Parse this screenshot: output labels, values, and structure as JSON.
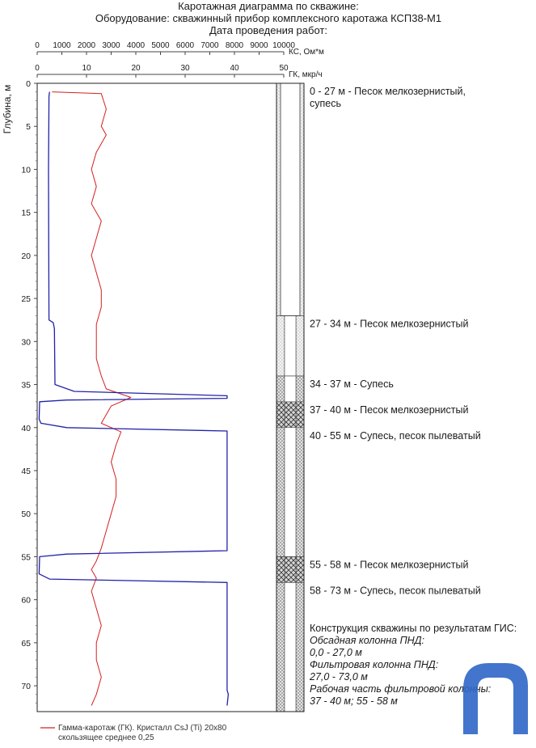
{
  "title_lines": [
    "Каротажная диаграмма по скважине:",
    "Оборудование: скважинный прибор комплексного каротажа КСП38-М1",
    "Дата проведения работ:"
  ],
  "chart_data": {
    "type": "line",
    "ylabel": "Глубина, м",
    "ylim": [
      0,
      73
    ],
    "y_ticks": [
      0,
      5,
      10,
      15,
      20,
      25,
      30,
      35,
      40,
      45,
      50,
      55,
      60,
      65,
      70
    ],
    "axes": {
      "ks": {
        "label": "КС, Ом*м",
        "range": [
          0,
          10000
        ],
        "ticks": [
          0,
          1000,
          2000,
          3000,
          4000,
          5000,
          6000,
          7000,
          8000,
          9000,
          10000
        ]
      },
      "gk": {
        "label": "ГК, мкр/ч",
        "range": [
          0,
          50
        ],
        "ticks": [
          0,
          10,
          20,
          30,
          40,
          50
        ]
      }
    },
    "grid": false,
    "series": [
      {
        "key": "gk",
        "axis": "gk",
        "color": "#d42020",
        "description": "Гамма-каротаж (ГК). Кристалл CsJ (Ti) 20x80 скользящее среднее 0,25",
        "points": [
          [
            1,
            3
          ],
          [
            1.2,
            13
          ],
          [
            3,
            14
          ],
          [
            5,
            13
          ],
          [
            6,
            14
          ],
          [
            8,
            12
          ],
          [
            10,
            11
          ],
          [
            12,
            12
          ],
          [
            14,
            11
          ],
          [
            16,
            13
          ],
          [
            18,
            12
          ],
          [
            20,
            11
          ],
          [
            22,
            12
          ],
          [
            24,
            13
          ],
          [
            26,
            13
          ],
          [
            28,
            12
          ],
          [
            30,
            12
          ],
          [
            32,
            12
          ],
          [
            34,
            13
          ],
          [
            35.5,
            14
          ],
          [
            36.5,
            19
          ],
          [
            37.5,
            15
          ],
          [
            38.5,
            14
          ],
          [
            39.5,
            13
          ],
          [
            40.5,
            17
          ],
          [
            42,
            16
          ],
          [
            44,
            15
          ],
          [
            46,
            16
          ],
          [
            48,
            16
          ],
          [
            50,
            15
          ],
          [
            52,
            14
          ],
          [
            54,
            13
          ],
          [
            55.5,
            12
          ],
          [
            56.5,
            11
          ],
          [
            57.5,
            12
          ],
          [
            59,
            11
          ],
          [
            61,
            12
          ],
          [
            63,
            13
          ],
          [
            65,
            12
          ],
          [
            67,
            12
          ],
          [
            69,
            13
          ],
          [
            71,
            12
          ],
          [
            72.3,
            11
          ]
        ]
      },
      {
        "key": "ks",
        "axis": "ks",
        "color": "#2222aa",
        "description": "КС",
        "points": [
          [
            1,
            500
          ],
          [
            1.5,
            480
          ],
          [
            10,
            460
          ],
          [
            20,
            470
          ],
          [
            27.5,
            480
          ],
          [
            27.8,
            650
          ],
          [
            28.5,
            700
          ],
          [
            35,
            720
          ],
          [
            35.8,
            1500
          ],
          [
            36.3,
            7700
          ],
          [
            36.6,
            7700
          ],
          [
            36.8,
            1200
          ],
          [
            37,
            100
          ],
          [
            39,
            80
          ],
          [
            39.5,
            150
          ],
          [
            40,
            1200
          ],
          [
            40.4,
            7700
          ],
          [
            54.3,
            7700
          ],
          [
            54.7,
            1200
          ],
          [
            55,
            100
          ],
          [
            57,
            80
          ],
          [
            57.6,
            500
          ],
          [
            58,
            7700
          ],
          [
            70.5,
            7700
          ],
          [
            71,
            7750
          ],
          [
            72.3,
            7700
          ]
        ]
      }
    ]
  },
  "lithology": [
    {
      "from": 0,
      "to": 27,
      "label": "0 - 27 м - Песок мелкозернистый, супесь",
      "display": [
        "0 - 27 м - Песок мелкозернистый,",
        "супесь"
      ],
      "pattern": "sand"
    },
    {
      "from": 27,
      "to": 34,
      "label": "27 - 34 м - Песок мелкозернистый",
      "display": [
        "27 - 34 м - Песок мелкозернистый"
      ],
      "pattern": "sand"
    },
    {
      "from": 34,
      "to": 37,
      "label": "34 - 37 м - Супесь",
      "display": [
        "34 - 37 м - Супесь"
      ],
      "pattern": "sandy-loam"
    },
    {
      "from": 37,
      "to": 40,
      "label": "37 - 40 м - Песок мелкозернистый",
      "display": [
        "37 - 40 м - Песок мелкозернистый"
      ],
      "pattern": "screen"
    },
    {
      "from": 40,
      "to": 55,
      "label": "40 - 55 м - Супесь, песок пылеватый",
      "display": [
        "40 - 55 м - Супесь, песок пылеватый"
      ],
      "pattern": "sandy-loam"
    },
    {
      "from": 55,
      "to": 58,
      "label": "55 - 58 м - Песок мелкозернистый",
      "display": [
        "55 - 58 м - Песок мелкозернистый"
      ],
      "pattern": "screen"
    },
    {
      "from": 58,
      "to": 73,
      "label": "58 - 73 м - Супесь, песок пылеватый",
      "display": [
        "58 - 73 м - Супесь, песок пылеватый"
      ],
      "pattern": "sandy-loam"
    }
  ],
  "construction": {
    "heading": "Конструкция скважины по результатам ГИС:",
    "casing_label": "Обсадная колонна ПНД:",
    "casing_range": "0,0 - 27,0 м",
    "filter_label": "Фильтровая колонна ПНД:",
    "filter_range": "27,0 - 73,0 м",
    "working_label": "Рабочая часть фильтровой колонны:",
    "working_range": "37 - 40 м; 55 - 58 м"
  },
  "legend": {
    "line1": "Гамма-каротаж (ГК). Кристалл CsJ (Ti) 20x80",
    "line2": "скользящее среднее 0,25"
  },
  "colors": {
    "gk_line": "#d42020",
    "ks_line": "#2222aa",
    "logo": "#2f66c7"
  }
}
